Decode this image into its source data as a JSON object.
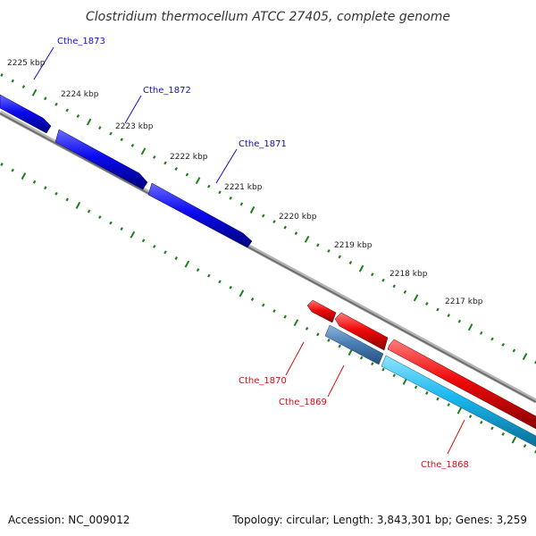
{
  "title": "Clostridium thermocellum ATCC 27405, complete genome",
  "footer": {
    "accession": "Accession: NC_009012",
    "summary": "Topology: circular; Length: 3,843,301 bp; Genes: 3,259"
  },
  "colors": {
    "forward_gene": "#0a0af0",
    "reverse_gene": "#f00a0a",
    "cds_dark": "#4a7fb5",
    "cds_light": "#1ab8ee",
    "backbone": "#808080",
    "tick": "#1e7f1e",
    "forward_label": "#1010c8",
    "reverse_label": "#d01010"
  },
  "scale_ticks": [
    {
      "label": "2225 kbp"
    },
    {
      "label": "2224 kbp"
    },
    {
      "label": "2223 kbp"
    },
    {
      "label": "2222 kbp"
    },
    {
      "label": "2221 kbp"
    },
    {
      "label": "2220 kbp"
    },
    {
      "label": "2219 kbp"
    },
    {
      "label": "2218 kbp"
    },
    {
      "label": "2217 kbp"
    }
  ],
  "genes_forward": [
    {
      "name": "Cthe_1873"
    },
    {
      "name": "Cthe_1872"
    },
    {
      "name": "Cthe_1871"
    }
  ],
  "genes_reverse": [
    {
      "name": "Cthe_1870"
    },
    {
      "name": "Cthe_1869"
    },
    {
      "name": "Cthe_1868"
    }
  ]
}
